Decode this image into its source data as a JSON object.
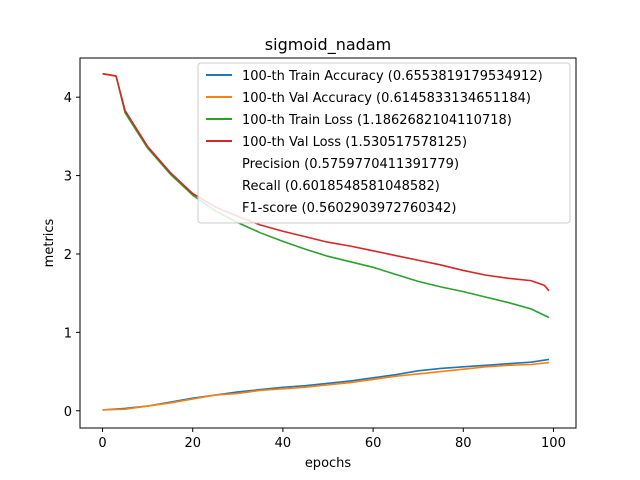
{
  "chart_data": {
    "type": "line",
    "title": "sigmoid_nadam",
    "xlabel": "epochs",
    "ylabel": "metrics",
    "xlim": [
      -5,
      105
    ],
    "ylim": [
      -0.22,
      4.5
    ],
    "xticks": [
      0,
      20,
      40,
      60,
      80,
      100
    ],
    "yticks": [
      0,
      1,
      2,
      3,
      4
    ],
    "grid": false,
    "legend_position": "top-right",
    "series": [
      {
        "name": "100-th Train Accuracy (0.6553819179534912)",
        "color": "#1f77b4",
        "x": [
          0,
          5,
          10,
          15,
          20,
          25,
          30,
          35,
          40,
          45,
          50,
          55,
          60,
          65,
          70,
          75,
          80,
          85,
          90,
          95,
          99
        ],
        "y": [
          0.01,
          0.03,
          0.06,
          0.11,
          0.16,
          0.2,
          0.24,
          0.27,
          0.3,
          0.32,
          0.35,
          0.38,
          0.42,
          0.46,
          0.51,
          0.54,
          0.56,
          0.58,
          0.6,
          0.62,
          0.655
        ]
      },
      {
        "name": "100-th Val Accuracy (0.6145833134651184)",
        "color": "#ff7f0e",
        "x": [
          0,
          5,
          10,
          15,
          20,
          25,
          30,
          35,
          40,
          45,
          50,
          55,
          60,
          65,
          70,
          75,
          80,
          85,
          90,
          95,
          99
        ],
        "y": [
          0.01,
          0.02,
          0.06,
          0.1,
          0.15,
          0.2,
          0.22,
          0.26,
          0.28,
          0.3,
          0.33,
          0.36,
          0.4,
          0.44,
          0.47,
          0.5,
          0.53,
          0.56,
          0.58,
          0.59,
          0.615
        ]
      },
      {
        "name": "100-th Train Loss (1.1862682104110718)",
        "color": "#2ca02c",
        "x": [
          0,
          3,
          5,
          10,
          15,
          20,
          25,
          30,
          35,
          40,
          45,
          50,
          55,
          60,
          65,
          70,
          75,
          80,
          85,
          90,
          95,
          99
        ],
        "y": [
          4.3,
          4.27,
          3.8,
          3.35,
          3.02,
          2.75,
          2.55,
          2.4,
          2.27,
          2.16,
          2.06,
          1.97,
          1.9,
          1.83,
          1.74,
          1.65,
          1.58,
          1.52,
          1.45,
          1.38,
          1.3,
          1.19
        ]
      },
      {
        "name": "100-th Val Loss (1.530517578125)",
        "color": "#d62728",
        "x": [
          0,
          3,
          5,
          10,
          15,
          20,
          25,
          30,
          35,
          40,
          45,
          50,
          55,
          60,
          65,
          70,
          75,
          80,
          85,
          90,
          95,
          98,
          99
        ],
        "y": [
          4.3,
          4.27,
          3.83,
          3.37,
          3.04,
          2.77,
          2.6,
          2.48,
          2.37,
          2.29,
          2.22,
          2.15,
          2.1,
          2.04,
          1.98,
          1.92,
          1.86,
          1.79,
          1.73,
          1.69,
          1.66,
          1.6,
          1.53
        ]
      }
    ],
    "legend_extra": [
      "Precision (0.5759770411391779)",
      "Recall (0.6018548581048582)",
      "F1-score (0.5602903972760342)"
    ]
  }
}
